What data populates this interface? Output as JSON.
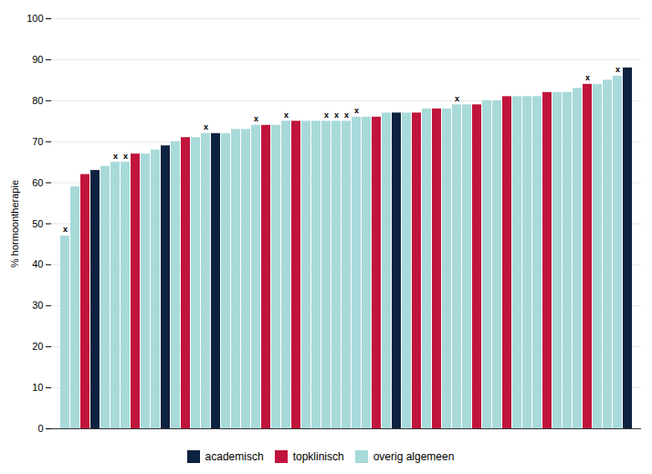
{
  "chart_data": {
    "type": "bar",
    "ylabel": "% hormoontherapie",
    "categories": [
      null,
      null,
      null,
      null,
      null,
      null,
      null,
      null,
      null,
      null,
      null,
      null,
      null,
      null,
      null,
      null,
      null,
      null,
      null,
      null,
      null,
      null,
      null,
      null,
      null,
      null,
      null,
      null,
      null,
      null,
      null,
      null,
      null,
      null,
      null,
      null,
      null,
      null,
      null,
      null,
      null,
      null,
      null,
      null,
      null,
      null,
      null,
      null,
      null,
      null,
      null,
      null,
      null,
      null,
      null,
      null,
      null
    ],
    "series": [
      {
        "name": "academisch",
        "color": "#0d2240",
        "values": [
          null,
          null,
          null,
          63,
          null,
          null,
          null,
          null,
          null,
          null,
          69,
          null,
          null,
          null,
          null,
          72,
          null,
          null,
          null,
          null,
          null,
          null,
          null,
          null,
          null,
          null,
          null,
          null,
          null,
          null,
          null,
          null,
          null,
          77,
          null,
          null,
          null,
          null,
          null,
          null,
          null,
          null,
          null,
          null,
          null,
          null,
          null,
          null,
          null,
          null,
          null,
          null,
          null,
          null,
          null,
          null,
          88
        ]
      },
      {
        "name": "topklinisch",
        "color": "#c0143c",
        "values": [
          null,
          null,
          62,
          null,
          null,
          null,
          null,
          67,
          null,
          null,
          null,
          null,
          71,
          null,
          null,
          null,
          null,
          null,
          null,
          null,
          74,
          null,
          null,
          75,
          null,
          null,
          null,
          null,
          null,
          null,
          null,
          76,
          null,
          null,
          null,
          77,
          null,
          78,
          null,
          null,
          null,
          79,
          null,
          null,
          81,
          null,
          null,
          null,
          82,
          null,
          null,
          null,
          84,
          null,
          null,
          null,
          null
        ]
      },
      {
        "name": "overig algemeen",
        "color": "#a8dada",
        "values": [
          47,
          59,
          null,
          null,
          64,
          65,
          65,
          null,
          67,
          68,
          null,
          70,
          null,
          71,
          72,
          null,
          72,
          73,
          73,
          74,
          null,
          74,
          75,
          null,
          75,
          75,
          75,
          75,
          75,
          76,
          76,
          null,
          77,
          null,
          77,
          null,
          78,
          null,
          78,
          79,
          79,
          null,
          80,
          80,
          null,
          81,
          81,
          81,
          null,
          82,
          82,
          83,
          null,
          84,
          85,
          86,
          null
        ]
      }
    ],
    "annotations": [
      {
        "x": 0,
        "y": 47,
        "text": "x"
      },
      {
        "x": 5,
        "y": 65,
        "text": "x"
      },
      {
        "x": 6,
        "y": 65,
        "text": "x"
      },
      {
        "x": 14,
        "y": 72,
        "text": "x"
      },
      {
        "x": 19,
        "y": 74,
        "text": "x"
      },
      {
        "x": 22,
        "y": 75,
        "text": "x"
      },
      {
        "x": 26,
        "y": 75,
        "text": "x"
      },
      {
        "x": 27,
        "y": 75,
        "text": "x"
      },
      {
        "x": 28,
        "y": 75,
        "text": "x"
      },
      {
        "x": 29,
        "y": 76,
        "text": "x"
      },
      {
        "x": 39,
        "y": 79,
        "text": "x"
      },
      {
        "x": 52,
        "y": 84,
        "text": "x"
      },
      {
        "x": 55,
        "y": 86,
        "text": "x"
      }
    ],
    "ylim": [
      0,
      100
    ],
    "yticks": [
      0,
      10,
      20,
      30,
      40,
      50,
      60,
      70,
      80,
      90,
      100
    ],
    "grid": true,
    "legend": "bottom",
    "tick_labels": "y"
  }
}
